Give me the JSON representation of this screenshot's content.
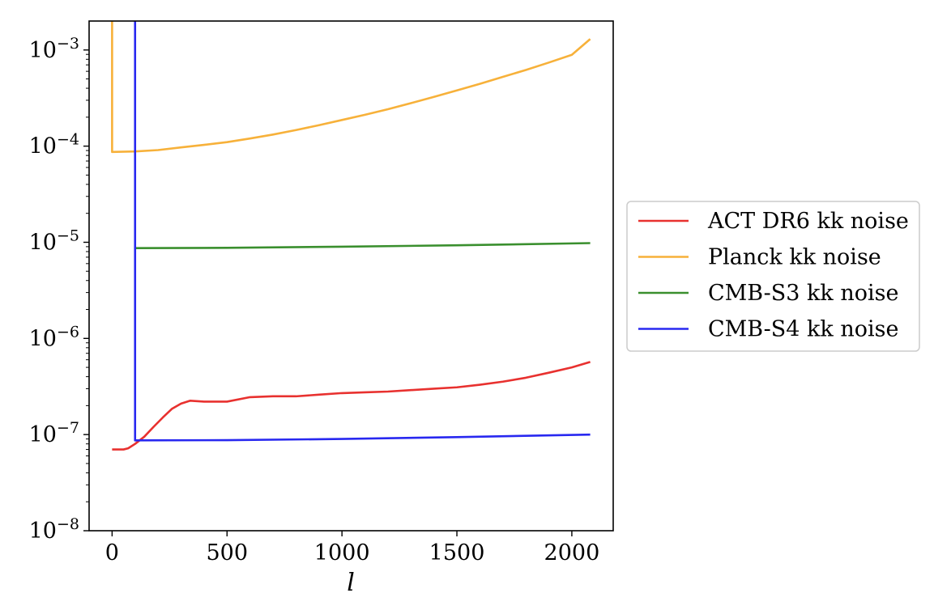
{
  "chart_data": {
    "type": "line",
    "xlabel": "l",
    "ylabel": "",
    "title": "",
    "xscale": "linear",
    "yscale": "log",
    "xlim": [
      -100,
      2180
    ],
    "ylim": [
      1e-08,
      0.002
    ],
    "xticks": [
      {
        "value": 0,
        "label": "0"
      },
      {
        "value": 500,
        "label": "500"
      },
      {
        "value": 1000,
        "label": "1000"
      },
      {
        "value": 1500,
        "label": "1500"
      },
      {
        "value": 2000,
        "label": "2000"
      }
    ],
    "yticks": [
      {
        "value": 1e-08,
        "base": "10",
        "exp": "−8"
      },
      {
        "value": 1e-07,
        "base": "10",
        "exp": "−7"
      },
      {
        "value": 1e-06,
        "base": "10",
        "exp": "−6"
      },
      {
        "value": 1e-05,
        "base": "10",
        "exp": "−5"
      },
      {
        "value": 0.0001,
        "base": "10",
        "exp": "−4"
      },
      {
        "value": 0.001,
        "base": "10",
        "exp": "−3"
      }
    ],
    "grid": false,
    "legend_position": "center-right outside",
    "series": [
      {
        "name": "ACT DR6 kk noise",
        "color": "#e8312f",
        "x": [
          0,
          50,
          70,
          100,
          140,
          180,
          220,
          260,
          300,
          340,
          400,
          500,
          600,
          700,
          800,
          900,
          1000,
          1100,
          1200,
          1300,
          1400,
          1500,
          1600,
          1700,
          1800,
          1900,
          2000,
          2080
        ],
        "y": [
          7e-08,
          7e-08,
          7.2e-08,
          8e-08,
          9.5e-08,
          1.2e-07,
          1.5e-07,
          1.85e-07,
          2.1e-07,
          2.25e-07,
          2.2e-07,
          2.2e-07,
          2.45e-07,
          2.5e-07,
          2.5e-07,
          2.6e-07,
          2.7e-07,
          2.75e-07,
          2.8e-07,
          2.9e-07,
          3e-07,
          3.1e-07,
          3.3e-07,
          3.55e-07,
          3.9e-07,
          4.4e-07,
          5e-07,
          5.7e-07
        ]
      },
      {
        "name": "Planck kk noise",
        "color": "#f7b13a",
        "x": [
          0,
          0,
          100,
          200,
          300,
          400,
          500,
          600,
          700,
          800,
          900,
          1000,
          1100,
          1200,
          1300,
          1400,
          1500,
          1600,
          1700,
          1800,
          1900,
          2000,
          2080
        ],
        "y": [
          0.005,
          8.7e-05,
          8.8e-05,
          9.1e-05,
          9.7e-05,
          0.000103,
          0.00011,
          0.00012,
          0.000132,
          0.000147,
          0.000165,
          0.000187,
          0.000212,
          0.000242,
          0.00028,
          0.000325,
          0.00038,
          0.000445,
          0.000525,
          0.00062,
          0.00074,
          0.00089,
          0.0013
        ]
      },
      {
        "name": "CMB-S3 kk noise",
        "color": "#3a8f2e",
        "x": [
          100,
          500,
          1000,
          1500,
          2080
        ],
        "y": [
          8.7e-06,
          8.75e-06,
          9e-06,
          9.3e-06,
          9.8e-06
        ]
      },
      {
        "name": "CMB-S4 kk noise",
        "color": "#2828f0",
        "x": [
          100,
          100,
          500,
          1000,
          1500,
          2080
        ],
        "y": [
          0.005,
          8.7e-08,
          8.75e-08,
          9e-08,
          9.4e-08,
          1e-07
        ]
      }
    ]
  }
}
